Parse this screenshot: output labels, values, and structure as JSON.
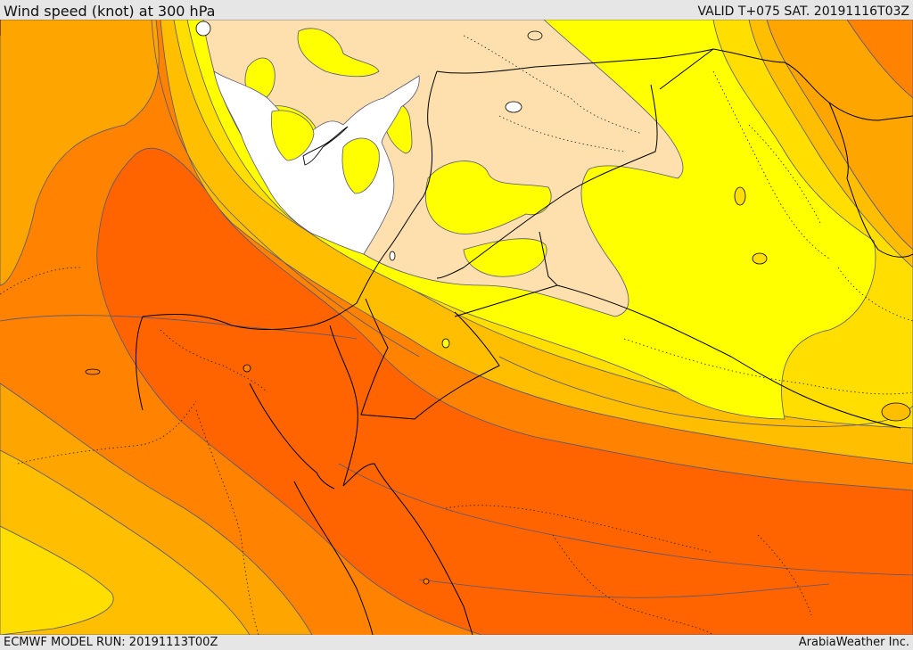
{
  "header": {
    "title": "Wind speed (knot) at 300 hPa",
    "valid": "VALID T+075 SAT. 20191116T03Z"
  },
  "footer": {
    "model_run": "ECMWF MODEL RUN: 20191113T00Z",
    "credit": "ArabiaWeather Inc."
  },
  "map": {
    "colors": {
      "calm": "#ffffff",
      "light": "#fde0ae",
      "yellow": "#ffff00",
      "gold": "#ffde00",
      "amber": "#ffbf00",
      "orange_light": "#ffa500",
      "orange": "#ff8200",
      "orange_dark": "#ff6400",
      "contour": "#555577",
      "border": "#000000"
    }
  }
}
